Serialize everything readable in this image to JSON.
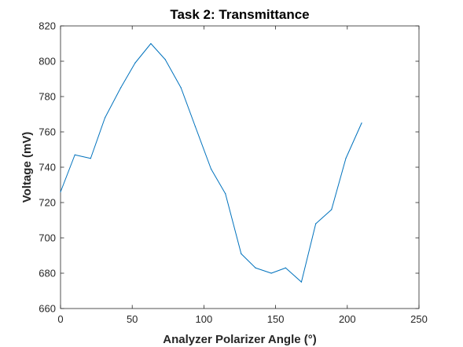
{
  "chart_data": {
    "type": "line",
    "title": "Task 2: Transmittance",
    "xlabel": "Analyzer Polarizer Angle (°)",
    "ylabel": "Voltage (mV)",
    "xlim": [
      0,
      250
    ],
    "ylim": [
      660,
      820
    ],
    "xticks": [
      0,
      50,
      100,
      150,
      200,
      250
    ],
    "yticks": [
      660,
      680,
      700,
      720,
      740,
      760,
      780,
      800,
      820
    ],
    "grid": false,
    "series": [
      {
        "color": "#0072bd",
        "x": [
          0,
          10,
          21,
          31,
          42,
          52,
          63,
          73,
          84,
          94,
          105,
          115,
          126,
          136,
          147,
          157,
          168,
          178,
          189,
          199,
          210
        ],
        "y": [
          726,
          747,
          745,
          768,
          785,
          799,
          810,
          801,
          785,
          763,
          739,
          725,
          691,
          683,
          680,
          683,
          675,
          708,
          716,
          745,
          765
        ]
      }
    ]
  }
}
